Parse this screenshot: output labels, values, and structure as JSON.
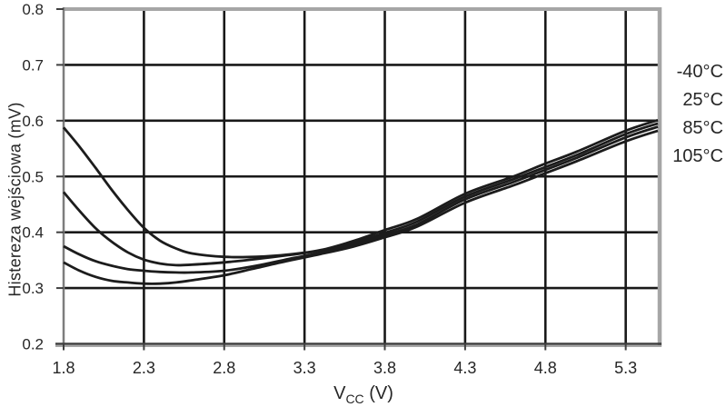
{
  "chart_data": {
    "type": "line",
    "title": "",
    "ylabel": "Histereza wejściowa (mV)",
    "xlabel_main": "V",
    "xlabel_sub": "CC",
    "xlabel_unit": " (V)",
    "xlim": [
      1.8,
      5.5
    ],
    "ylim": [
      0.2,
      0.8
    ],
    "x_ticks": [
      "1.8",
      "2.3",
      "2.8",
      "3.3",
      "3.8",
      "4.3",
      "4.8",
      "5.3"
    ],
    "y_ticks": [
      "0.2",
      "0.3",
      "0.4",
      "0.5",
      "0.6",
      "0.7",
      "0.8"
    ],
    "grid": true,
    "legend": {
      "position": "right-outside",
      "entries": [
        "-40°C",
        "25°C",
        "85°C",
        "105°C"
      ]
    },
    "x": [
      1.8,
      1.9,
      2.0,
      2.1,
      2.2,
      2.3,
      2.4,
      2.5,
      2.6,
      2.8,
      3.0,
      3.2,
      3.4,
      3.6,
      3.8,
      4.0,
      4.3,
      4.6,
      4.8,
      5.0,
      5.3,
      5.5
    ],
    "series": [
      {
        "name": "-40°C",
        "values": [
          0.588,
          0.553,
          0.515,
          0.476,
          0.44,
          0.408,
          0.385,
          0.371,
          0.362,
          0.356,
          0.356,
          0.36,
          0.368,
          0.384,
          0.404,
          0.424,
          0.469,
          0.5,
          0.523,
          0.545,
          0.582,
          0.601
        ]
      },
      {
        "name": "25°C",
        "values": [
          0.472,
          0.438,
          0.407,
          0.383,
          0.364,
          0.351,
          0.344,
          0.341,
          0.342,
          0.346,
          0.352,
          0.359,
          0.367,
          0.381,
          0.399,
          0.419,
          0.464,
          0.495,
          0.517,
          0.539,
          0.576,
          0.595
        ]
      },
      {
        "name": "85°C",
        "values": [
          0.375,
          0.36,
          0.348,
          0.34,
          0.334,
          0.331,
          0.329,
          0.328,
          0.328,
          0.331,
          0.34,
          0.352,
          0.363,
          0.377,
          0.395,
          0.414,
          0.459,
          0.49,
          0.512,
          0.534,
          0.57,
          0.589
        ]
      },
      {
        "name": "105°C",
        "values": [
          0.346,
          0.331,
          0.32,
          0.313,
          0.31,
          0.308,
          0.308,
          0.31,
          0.314,
          0.323,
          0.336,
          0.349,
          0.361,
          0.374,
          0.391,
          0.41,
          0.453,
          0.484,
          0.506,
          0.528,
          0.563,
          0.582
        ]
      }
    ],
    "colors": {
      "curve": "#1c1c1c",
      "grid": "#191919",
      "axis": "#3f3f3f",
      "frame": "#a6a6a6",
      "text": "#262626"
    }
  }
}
